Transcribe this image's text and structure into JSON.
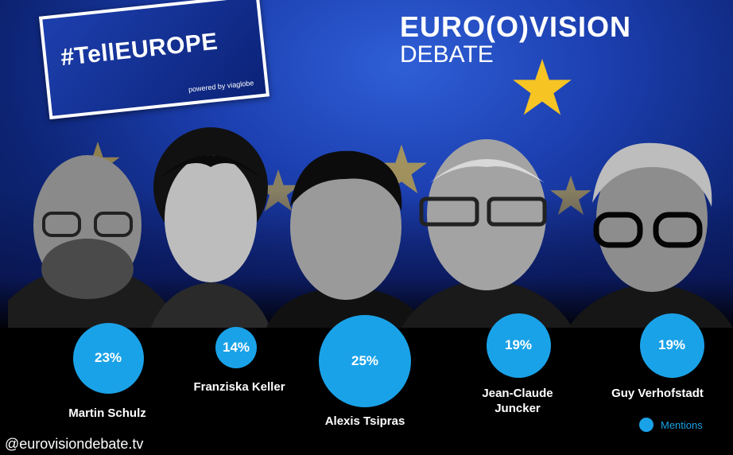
{
  "brand": {
    "hashtag": "#TellEUROPE",
    "powered": "powered by viaglobe",
    "logo_title": "EURO(O)VISION",
    "logo_sub": "DEBATE"
  },
  "chart_data": {
    "type": "bubble",
    "metric": "Mentions",
    "categories": [
      "Martin Schulz",
      "Franziska Keller",
      "Alexis Tsipras",
      "Jean-Claude Juncker",
      "Guy Verhofstadt"
    ],
    "values": [
      23,
      14,
      25,
      19,
      19
    ],
    "labels": [
      "23%",
      "14%",
      "25%",
      "19%",
      "19%"
    ],
    "color": "#1aa2e8"
  },
  "names": {
    "c0": "Martin Schulz",
    "c1": "Franziska Keller",
    "c2": "Alexis Tsipras",
    "c3a": "Jean-Claude",
    "c3b": "Juncker",
    "c4": "Guy Verhofstadt"
  },
  "legend": {
    "label": "Mentions"
  },
  "footer": {
    "handle": "@eurovisiondebate.tv"
  },
  "colors": {
    "accent": "#1aa2e8",
    "background": "#000000",
    "star": "#f6c423"
  }
}
